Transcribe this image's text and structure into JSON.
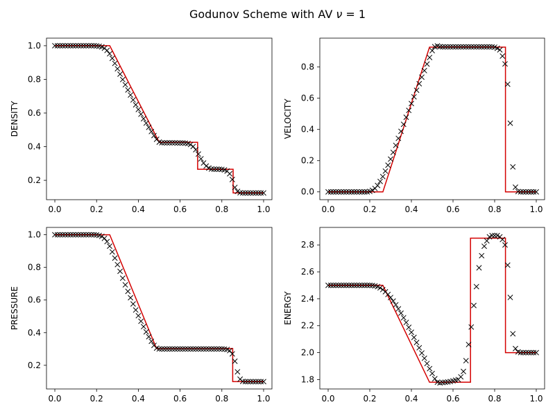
{
  "figure": {
    "title_text": "Godunov Scheme with AV ",
    "title_symbol": "ν",
    "title_suffix": " = 1"
  },
  "colors": {
    "exact": "#d40000",
    "numerical": "#000000"
  },
  "chart_data": [
    {
      "type": "line",
      "ylabel": "DENSITY",
      "xlim": [
        -0.04,
        1.04
      ],
      "ylim": [
        0.085,
        1.045
      ],
      "xticks": [
        0.0,
        0.2,
        0.4,
        0.6,
        0.8,
        1.0
      ],
      "yticks": [
        0.2,
        0.4,
        0.6,
        0.8,
        1.0
      ],
      "series": [
        {
          "style": "line",
          "color": "#d40000",
          "x": [
            0.0,
            0.263,
            0.5,
            0.684,
            0.684,
            0.854,
            0.854,
            1.0
          ],
          "y": [
            1.0,
            1.0,
            0.426,
            0.426,
            0.266,
            0.266,
            0.125,
            0.125
          ]
        },
        {
          "style": "x-markers",
          "color": "#000000",
          "x": [
            0,
            0.0125,
            0.025,
            0.0375,
            0.05,
            0.0625,
            0.075,
            0.0875,
            0.1,
            0.1125,
            0.125,
            0.1375,
            0.15,
            0.1625,
            0.175,
            0.1875,
            0.2,
            0.2125,
            0.225,
            0.2375,
            0.25,
            0.2625,
            0.275,
            0.2875,
            0.3,
            0.3125,
            0.325,
            0.3375,
            0.35,
            0.3625,
            0.375,
            0.3875,
            0.4,
            0.4125,
            0.425,
            0.4375,
            0.45,
            0.4625,
            0.475,
            0.4875,
            0.5,
            0.5125,
            0.525,
            0.5375,
            0.55,
            0.5625,
            0.575,
            0.5875,
            0.6,
            0.6125,
            0.625,
            0.6375,
            0.65,
            0.6625,
            0.675,
            0.6875,
            0.7,
            0.7125,
            0.725,
            0.7375,
            0.75,
            0.7625,
            0.775,
            0.7875,
            0.8,
            0.8125,
            0.825,
            0.8375,
            0.85,
            0.8625,
            0.875,
            0.8875,
            0.9,
            0.9125,
            0.925,
            0.9375,
            0.95,
            0.9625,
            0.975,
            0.9875,
            1
          ],
          "y": [
            1,
            1,
            1,
            1,
            1,
            1,
            1,
            1,
            1,
            1,
            1,
            1,
            1,
            1,
            1,
            1,
            0.999,
            0.997,
            0.993,
            0.985,
            0.972,
            0.952,
            0.925,
            0.895,
            0.863,
            0.831,
            0.799,
            0.768,
            0.737,
            0.707,
            0.678,
            0.649,
            0.621,
            0.593,
            0.566,
            0.54,
            0.515,
            0.49,
            0.466,
            0.444,
            0.427,
            0.423,
            0.423,
            0.423,
            0.423,
            0.423,
            0.423,
            0.422,
            0.422,
            0.422,
            0.421,
            0.419,
            0.413,
            0.401,
            0.382,
            0.356,
            0.328,
            0.303,
            0.285,
            0.273,
            0.267,
            0.266,
            0.266,
            0.266,
            0.265,
            0.262,
            0.255,
            0.239,
            0.205,
            0.158,
            0.134,
            0.126,
            0.125,
            0.125,
            0.125,
            0.125,
            0.125,
            0.125,
            0.125,
            0.125,
            0.125
          ]
        }
      ]
    },
    {
      "type": "line",
      "ylabel": "VELOCITY",
      "xlim": [
        -0.04,
        1.04
      ],
      "ylim": [
        -0.05,
        0.985
      ],
      "xticks": [
        0.0,
        0.2,
        0.4,
        0.6,
        0.8,
        1.0
      ],
      "yticks": [
        0.0,
        0.2,
        0.4,
        0.6,
        0.8
      ],
      "series": [
        {
          "style": "line",
          "color": "#d40000",
          "x": [
            0.0,
            0.263,
            0.487,
            0.852,
            0.852,
            1.0
          ],
          "y": [
            0.0,
            0.0,
            0.927,
            0.927,
            0.0,
            0.0
          ]
        },
        {
          "style": "x-markers",
          "color": "#000000",
          "x": [
            0,
            0.0125,
            0.025,
            0.0375,
            0.05,
            0.0625,
            0.075,
            0.0875,
            0.1,
            0.1125,
            0.125,
            0.1375,
            0.15,
            0.1625,
            0.175,
            0.1875,
            0.2,
            0.2125,
            0.225,
            0.2375,
            0.25,
            0.2625,
            0.275,
            0.2875,
            0.3,
            0.3125,
            0.325,
            0.3375,
            0.35,
            0.3625,
            0.375,
            0.3875,
            0.4,
            0.4125,
            0.425,
            0.4375,
            0.45,
            0.4625,
            0.475,
            0.4875,
            0.5,
            0.5125,
            0.525,
            0.5375,
            0.55,
            0.5625,
            0.575,
            0.5875,
            0.6,
            0.6125,
            0.625,
            0.6375,
            0.65,
            0.6625,
            0.675,
            0.6875,
            0.7,
            0.7125,
            0.725,
            0.7375,
            0.75,
            0.7625,
            0.775,
            0.7875,
            0.8,
            0.8125,
            0.825,
            0.8375,
            0.85,
            0.8625,
            0.875,
            0.8875,
            0.9,
            0.9125,
            0.925,
            0.9375,
            0.95,
            0.9625,
            0.975,
            0.9875,
            1
          ],
          "y": [
            0,
            0,
            0,
            0,
            0,
            0,
            0,
            0,
            0,
            0,
            0,
            0,
            0,
            0,
            0,
            0,
            0.003,
            0.01,
            0.022,
            0.041,
            0.067,
            0.098,
            0.133,
            0.171,
            0.21,
            0.253,
            0.298,
            0.343,
            0.388,
            0.433,
            0.478,
            0.522,
            0.566,
            0.609,
            0.651,
            0.693,
            0.735,
            0.777,
            0.819,
            0.861,
            0.905,
            0.93,
            0.935,
            0.93,
            0.929,
            0.929,
            0.929,
            0.929,
            0.929,
            0.929,
            0.929,
            0.929,
            0.929,
            0.929,
            0.929,
            0.929,
            0.929,
            0.929,
            0.929,
            0.929,
            0.929,
            0.929,
            0.929,
            0.929,
            0.927,
            0.92,
            0.91,
            0.87,
            0.82,
            0.69,
            0.44,
            0.16,
            0.03,
            0.002,
            0,
            0,
            0,
            0,
            0,
            0,
            0
          ]
        }
      ]
    },
    {
      "type": "line",
      "ylabel": "PRESSURE",
      "xlim": [
        -0.04,
        1.04
      ],
      "ylim": [
        0.055,
        1.045
      ],
      "xticks": [
        0.0,
        0.2,
        0.4,
        0.6,
        0.8,
        1.0
      ],
      "yticks": [
        0.2,
        0.4,
        0.6,
        0.8,
        1.0
      ],
      "series": [
        {
          "style": "line",
          "color": "#d40000",
          "x": [
            0.0,
            0.263,
            0.487,
            0.852,
            0.852,
            1.0
          ],
          "y": [
            1.0,
            1.0,
            0.303,
            0.303,
            0.1,
            0.1
          ]
        },
        {
          "style": "x-markers",
          "color": "#000000",
          "x": [
            0,
            0.0125,
            0.025,
            0.0375,
            0.05,
            0.0625,
            0.075,
            0.0875,
            0.1,
            0.1125,
            0.125,
            0.1375,
            0.15,
            0.1625,
            0.175,
            0.1875,
            0.2,
            0.2125,
            0.225,
            0.2375,
            0.25,
            0.2625,
            0.275,
            0.2875,
            0.3,
            0.3125,
            0.325,
            0.3375,
            0.35,
            0.3625,
            0.375,
            0.3875,
            0.4,
            0.4125,
            0.425,
            0.4375,
            0.45,
            0.4625,
            0.475,
            0.4875,
            0.5,
            0.5125,
            0.525,
            0.5375,
            0.55,
            0.5625,
            0.575,
            0.5875,
            0.6,
            0.6125,
            0.625,
            0.6375,
            0.65,
            0.6625,
            0.675,
            0.6875,
            0.7,
            0.7125,
            0.725,
            0.7375,
            0.75,
            0.7625,
            0.775,
            0.7875,
            0.8,
            0.8125,
            0.825,
            0.8375,
            0.85,
            0.8625,
            0.875,
            0.8875,
            0.9,
            0.9125,
            0.925,
            0.9375,
            0.95,
            0.9625,
            0.975,
            0.9875,
            1
          ],
          "y": [
            1,
            1,
            1,
            1,
            1,
            1,
            1,
            1,
            1,
            1,
            1,
            1,
            1,
            1,
            1,
            1,
            0.999,
            0.996,
            0.99,
            0.978,
            0.958,
            0.93,
            0.895,
            0.857,
            0.817,
            0.776,
            0.734,
            0.693,
            0.653,
            0.614,
            0.576,
            0.539,
            0.504,
            0.47,
            0.437,
            0.405,
            0.375,
            0.347,
            0.322,
            0.305,
            0.3,
            0.3,
            0.3,
            0.3,
            0.3,
            0.3,
            0.3,
            0.3,
            0.3,
            0.3,
            0.3,
            0.3,
            0.3,
            0.3,
            0.3,
            0.3,
            0.3,
            0.3,
            0.3,
            0.3,
            0.3,
            0.3,
            0.3,
            0.3,
            0.3,
            0.299,
            0.297,
            0.29,
            0.27,
            0.225,
            0.16,
            0.115,
            0.101,
            0.1,
            0.1,
            0.1,
            0.1,
            0.1,
            0.1,
            0.1,
            0.1
          ]
        }
      ]
    },
    {
      "type": "line",
      "ylabel": "ENERGY",
      "xlim": [
        -0.04,
        1.04
      ],
      "ylim": [
        1.73,
        2.93
      ],
      "xticks": [
        0.0,
        0.2,
        0.4,
        0.6,
        0.8,
        1.0
      ],
      "yticks": [
        1.8,
        2.0,
        2.2,
        2.4,
        2.6,
        2.8
      ],
      "series": [
        {
          "style": "line",
          "color": "#d40000",
          "x": [
            0.0,
            0.263,
            0.487,
            0.684,
            0.684,
            0.852,
            0.852,
            1.0
          ],
          "y": [
            2.5,
            2.5,
            1.78,
            1.78,
            2.85,
            2.85,
            2.0,
            2.0
          ]
        },
        {
          "style": "x-markers",
          "color": "#000000",
          "x": [
            0,
            0.0125,
            0.025,
            0.0375,
            0.05,
            0.0625,
            0.075,
            0.0875,
            0.1,
            0.1125,
            0.125,
            0.1375,
            0.15,
            0.1625,
            0.175,
            0.1875,
            0.2,
            0.2125,
            0.225,
            0.2375,
            0.25,
            0.2625,
            0.275,
            0.2875,
            0.3,
            0.3125,
            0.325,
            0.3375,
            0.35,
            0.3625,
            0.375,
            0.3875,
            0.4,
            0.4125,
            0.425,
            0.4375,
            0.45,
            0.4625,
            0.475,
            0.4875,
            0.5,
            0.5125,
            0.525,
            0.5375,
            0.55,
            0.5625,
            0.575,
            0.5875,
            0.6,
            0.6125,
            0.625,
            0.6375,
            0.65,
            0.6625,
            0.675,
            0.6875,
            0.7,
            0.7125,
            0.725,
            0.7375,
            0.75,
            0.7625,
            0.775,
            0.7875,
            0.8,
            0.8125,
            0.825,
            0.8375,
            0.85,
            0.8625,
            0.875,
            0.8875,
            0.9,
            0.9125,
            0.925,
            0.9375,
            0.95,
            0.9625,
            0.975,
            0.9875,
            1
          ],
          "y": [
            2.5,
            2.5,
            2.5,
            2.5,
            2.5,
            2.5,
            2.5,
            2.5,
            2.5,
            2.5,
            2.5,
            2.5,
            2.5,
            2.5,
            2.5,
            2.5,
            2.5,
            2.499,
            2.496,
            2.49,
            2.481,
            2.468,
            2.452,
            2.432,
            2.409,
            2.383,
            2.355,
            2.325,
            2.293,
            2.259,
            2.224,
            2.188,
            2.151,
            2.113,
            2.075,
            2.036,
            1.997,
            1.958,
            1.919,
            1.881,
            1.845,
            1.806,
            1.78,
            1.775,
            1.778,
            1.78,
            1.782,
            1.785,
            1.79,
            1.795,
            1.8,
            1.82,
            1.86,
            1.94,
            2.06,
            2.19,
            2.35,
            2.49,
            2.63,
            2.72,
            2.79,
            2.83,
            2.86,
            2.87,
            2.87,
            2.87,
            2.86,
            2.84,
            2.8,
            2.65,
            2.41,
            2.14,
            2.03,
            2.005,
            2,
            2,
            2,
            2,
            2,
            2,
            2
          ]
        }
      ]
    }
  ]
}
